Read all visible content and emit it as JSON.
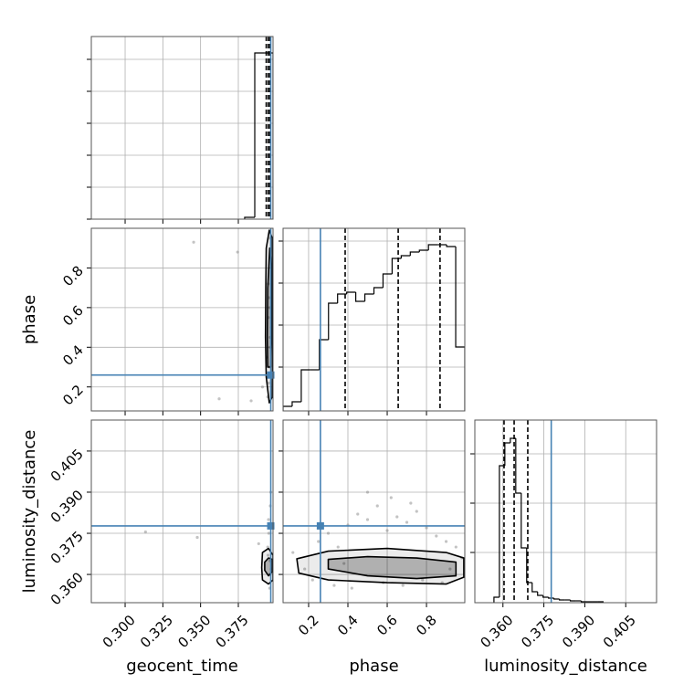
{
  "chart_data": [
    {
      "type": "histogram",
      "xlim": [
        0.2776,
        0.398
      ],
      "xticks": [
        {
          "value": 0.3,
          "label": "0.300"
        },
        {
          "value": 0.325,
          "label": "0.325"
        },
        {
          "value": 0.35,
          "label": "0.350"
        },
        {
          "value": 0.375,
          "label": "0.375"
        }
      ],
      "xticklabels": false,
      "ylim": [
        0,
        100
      ],
      "yticks": [
        0,
        17.5,
        35,
        52.5,
        70,
        87.5
      ],
      "yticklabels": false,
      "grid": true,
      "bins": [
        0.3792,
        0.3859,
        0.392,
        0.398
      ],
      "values": [
        1,
        91,
        91
      ],
      "quantiles": [
        0.3935,
        0.3949,
        0.396
      ],
      "truth": 0.3965,
      "color": "#000000",
      "truth_color": "#4682b4"
    },
    {
      "type": "scatter",
      "xlim": [
        0.2776,
        0.398
      ],
      "xticks": [
        {
          "value": 0.3,
          "label": "0.300"
        },
        {
          "value": 0.325,
          "label": "0.325"
        },
        {
          "value": 0.35,
          "label": "0.350"
        },
        {
          "value": 0.375,
          "label": "0.375"
        }
      ],
      "xticklabels": false,
      "ylim": [
        0.079,
        1.0
      ],
      "yticks": [
        0.2,
        0.4,
        0.6,
        0.8
      ],
      "yticklabels": true,
      "ylabel": "phase",
      "grid": true,
      "x": [
        0.3945,
        0.395,
        0.3955,
        0.396,
        0.3958,
        0.3948,
        0.3962,
        0.3952,
        0.3968,
        0.394,
        0.3957,
        0.3953,
        0.3965,
        0.3949,
        0.3959,
        0.3454,
        0.3623,
        0.3745,
        0.3835,
        0.391
      ],
      "y": [
        0.15,
        0.22,
        0.3,
        0.45,
        0.6,
        0.72,
        0.85,
        0.95,
        0.5,
        0.35,
        0.25,
        0.65,
        0.8,
        0.55,
        0.4,
        0.93,
        0.14,
        0.88,
        0.13,
        0.2
      ],
      "contours": [
        {
          "x": [
            0.3955,
            0.3935,
            0.393,
            0.3932,
            0.3935,
            0.3955,
            0.3975,
            0.3978,
            0.3978,
            0.3975
          ],
          "y": [
            0.12,
            0.25,
            0.45,
            0.7,
            0.9,
            0.99,
            0.95,
            0.7,
            0.4,
            0.15
          ]
        },
        {
          "x": [
            0.3945,
            0.3942,
            0.3945,
            0.3958,
            0.3972,
            0.3972,
            0.3965
          ],
          "y": [
            0.3,
            0.45,
            0.7,
            0.9,
            0.8,
            0.5,
            0.3
          ]
        }
      ],
      "truth": [
        0.3965,
        0.26
      ],
      "color": "#000000",
      "truth_color": "#4682b4"
    },
    {
      "type": "histogram",
      "xlim": [
        0.07,
        0.995
      ],
      "xticks": [
        0.2,
        0.4,
        0.6,
        0.8
      ],
      "xticklabels": false,
      "ylim": [
        0,
        200
      ],
      "yticks": [
        48,
        94,
        140,
        186
      ],
      "yticklabels": false,
      "grid": true,
      "bins": [
        0.07,
        0.11625,
        0.1625,
        0.20875,
        0.255,
        0.30125,
        0.3475,
        0.39375,
        0.44,
        0.48625,
        0.5325,
        0.57875,
        0.625,
        0.67125,
        0.7175,
        0.76375,
        0.81,
        0.85625,
        0.9025,
        0.94875,
        0.995
      ],
      "values": [
        5,
        10,
        45,
        45,
        78,
        118,
        128,
        130,
        120,
        128,
        135,
        150,
        167,
        170,
        174,
        176,
        182,
        182,
        180,
        70
      ],
      "quantiles": [
        0.386,
        0.656,
        0.869
      ],
      "truth": 0.26,
      "color": "#000000",
      "truth_color": "#4682b4"
    },
    {
      "type": "scatter",
      "xlim": [
        0.2776,
        0.398
      ],
      "xticks": [
        {
          "value": 0.3,
          "label": "0.300"
        },
        {
          "value": 0.325,
          "label": "0.325"
        },
        {
          "value": 0.35,
          "label": "0.350"
        },
        {
          "value": 0.375,
          "label": "0.375"
        }
      ],
      "xticklabels": true,
      "xlabel": "geocent_time",
      "ylim": [
        0.3497,
        0.4163
      ],
      "yticks": [
        {
          "value": 0.36,
          "label": "0.360"
        },
        {
          "value": 0.375,
          "label": "0.375"
        },
        {
          "value": 0.39,
          "label": "0.390"
        },
        {
          "value": 0.405,
          "label": "0.405"
        }
      ],
      "yticklabels": true,
      "ylabel": "luminosity_distance",
      "grid": true,
      "x": [
        0.3955,
        0.396,
        0.3945,
        0.395,
        0.3965,
        0.3958,
        0.3968,
        0.3952,
        0.3962,
        0.3947,
        0.3135,
        0.3478,
        0.3885
      ],
      "y": [
        0.36,
        0.365,
        0.37,
        0.38,
        0.39,
        0.355,
        0.362,
        0.375,
        0.385,
        0.367,
        0.3755,
        0.3735,
        0.3712
      ],
      "contours": [
        {
          "x": [
            0.3905,
            0.391,
            0.395,
            0.398,
            0.398,
            0.395,
            0.391
          ],
          "y": [
            0.3625,
            0.358,
            0.3565,
            0.358,
            0.367,
            0.3695,
            0.368
          ]
        },
        {
          "x": [
            0.3925,
            0.395,
            0.3975,
            0.3975,
            0.395,
            0.3925
          ],
          "y": [
            0.3615,
            0.3595,
            0.361,
            0.3655,
            0.366,
            0.3645
          ]
        }
      ],
      "truth": [
        0.3965,
        0.3777
      ],
      "color": "#000000",
      "truth_color": "#4682b4"
    },
    {
      "type": "scatter",
      "xlim": [
        0.07,
        0.995
      ],
      "xticks": [
        0.2,
        0.4,
        0.6,
        0.8
      ],
      "xticklabels": true,
      "xlabel": "phase",
      "ylim": [
        0.3497,
        0.4163
      ],
      "yticks": [
        {
          "value": 0.36,
          "label": "0.360"
        },
        {
          "value": 0.375,
          "label": "0.375"
        },
        {
          "value": 0.39,
          "label": "0.390"
        },
        {
          "value": 0.405,
          "label": "0.405"
        }
      ],
      "yticklabels": false,
      "grid": true,
      "x": [
        0.12,
        0.18,
        0.25,
        0.3,
        0.35,
        0.4,
        0.45,
        0.5,
        0.55,
        0.6,
        0.65,
        0.7,
        0.75,
        0.8,
        0.85,
        0.9,
        0.95,
        0.98,
        0.22,
        0.33,
        0.42,
        0.58,
        0.68,
        0.78,
        0.88,
        0.5,
        0.62,
        0.72,
        0.38,
        0.92
      ],
      "y": [
        0.368,
        0.362,
        0.372,
        0.375,
        0.37,
        0.378,
        0.382,
        0.38,
        0.385,
        0.376,
        0.381,
        0.379,
        0.383,
        0.377,
        0.374,
        0.372,
        0.37,
        0.366,
        0.358,
        0.356,
        0.355,
        0.357,
        0.356,
        0.358,
        0.357,
        0.39,
        0.388,
        0.386,
        0.364,
        0.362
      ],
      "contours": [
        {
          "x": [
            0.14,
            0.3,
            0.6,
            0.9,
            0.99,
            0.99,
            0.9,
            0.6,
            0.3,
            0.15
          ],
          "y": [
            0.3657,
            0.3685,
            0.3695,
            0.368,
            0.366,
            0.359,
            0.3565,
            0.357,
            0.358,
            0.3605
          ]
        },
        {
          "x": [
            0.3,
            0.5,
            0.75,
            0.95,
            0.95,
            0.75,
            0.5,
            0.3
          ],
          "y": [
            0.3655,
            0.3665,
            0.366,
            0.3645,
            0.3595,
            0.3585,
            0.3595,
            0.362
          ]
        }
      ],
      "truth": [
        0.26,
        0.3777
      ],
      "color": "#000000",
      "truth_color": "#4682b4"
    },
    {
      "type": "histogram",
      "xlim": [
        0.3497,
        0.4163
      ],
      "xticks": [
        {
          "value": 0.36,
          "label": "0.360"
        },
        {
          "value": 0.375,
          "label": "0.375"
        },
        {
          "value": 0.39,
          "label": "0.390"
        },
        {
          "value": 0.405,
          "label": "0.405"
        }
      ],
      "xticklabels": true,
      "xlabel": "luminosity_distance",
      "ylim": [
        0,
        200
      ],
      "yticks": [
        55,
        109,
        163
      ],
      "yticklabels": false,
      "grid": true,
      "bins": [
        0.3567,
        0.3587,
        0.3607,
        0.3627,
        0.3647,
        0.3667,
        0.3687,
        0.3707,
        0.3727,
        0.3747,
        0.3767,
        0.3787,
        0.3807,
        0.3827,
        0.3847,
        0.3867,
        0.3887,
        0.3907,
        0.3927,
        0.3947,
        0.3967
      ],
      "values": [
        6,
        150,
        175,
        180,
        120,
        60,
        22,
        12,
        8,
        6,
        5,
        4,
        3,
        3,
        2,
        2,
        1,
        1,
        1,
        1
      ],
      "quantiles": [
        0.3604,
        0.3641,
        0.3691
      ],
      "truth": 0.3777,
      "color": "#000000",
      "truth_color": "#4682b4"
    }
  ]
}
